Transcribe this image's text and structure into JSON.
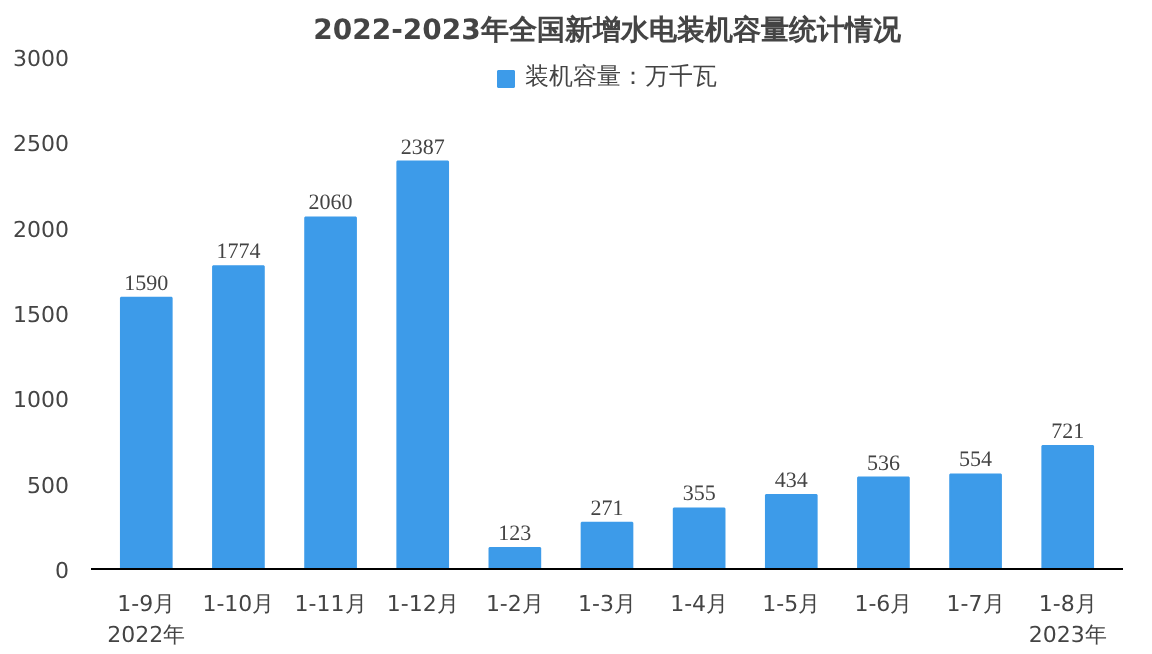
{
  "chart_data": {
    "type": "bar",
    "title": "2022-2023年全国新增水电装机容量统计情况",
    "categories": [
      "1-9月\n2022年",
      "1-10月",
      "1-11月",
      "1-12月",
      "1-2月",
      "1-3月",
      "1-4月",
      "1-5月",
      "1-6月",
      "1-7月",
      "1-8月\n2023年"
    ],
    "series": [
      {
        "name": "装机容量：万千瓦",
        "color": "#3d9be9",
        "values": [
          1590,
          1774,
          2060,
          2387,
          123,
          271,
          355,
          434,
          536,
          554,
          721
        ]
      }
    ],
    "ylim": [
      0,
      3000
    ],
    "yticks": [
      0,
      500,
      1000,
      1500,
      2000,
      2500,
      3000
    ],
    "grid": false,
    "legend": "top",
    "data_labels": true
  }
}
